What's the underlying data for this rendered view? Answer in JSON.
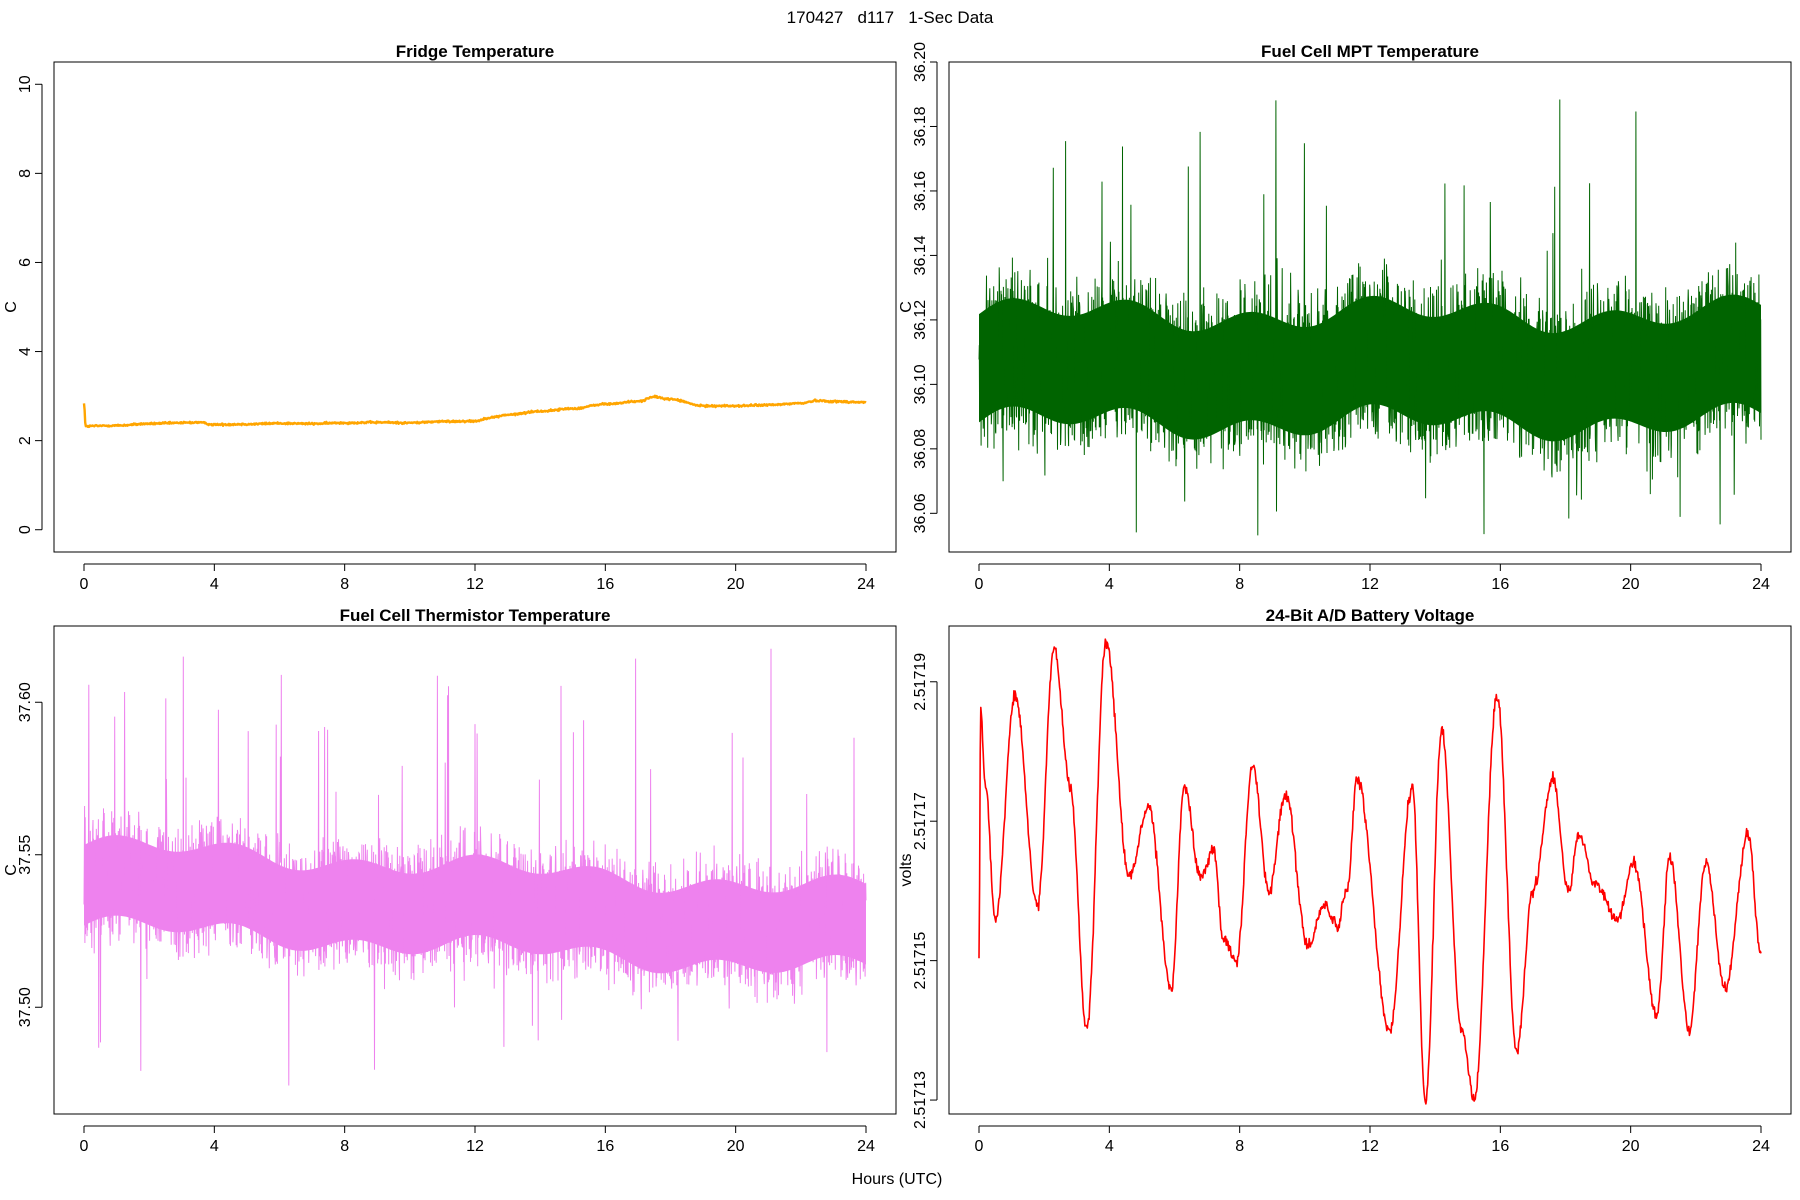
{
  "page_title": "170427   d117   1-Sec Data",
  "xlabel": "Hours (UTC)",
  "chart_data": [
    {
      "type": "line",
      "title": "Fridge Temperature",
      "ylabel": "C",
      "color": "#ffa500",
      "xlim": [
        0,
        24
      ],
      "ylim": [
        -0.5,
        10.5
      ],
      "xticks": [
        0,
        4,
        8,
        12,
        16,
        20,
        24
      ],
      "xtick_labels": [
        "0",
        "4",
        "8",
        "12",
        "16",
        "20",
        "24"
      ],
      "yticks": [
        0,
        2,
        4,
        6,
        8,
        10
      ],
      "ytick_labels": [
        "0",
        "2",
        "4",
        "6",
        "8",
        "10"
      ],
      "noise": 0.015,
      "x": [
        0,
        0.05,
        0.3,
        1,
        2,
        2.5,
        3,
        3.5,
        4,
        5,
        6,
        7,
        8,
        9,
        10,
        11,
        12,
        12.5,
        13,
        14,
        15,
        16,
        17,
        17.5,
        18,
        19,
        20,
        21,
        22,
        22.5,
        23,
        24
      ],
      "y": [
        2.85,
        2.32,
        2.33,
        2.34,
        2.38,
        2.39,
        2.4,
        2.41,
        2.36,
        2.37,
        2.39,
        2.38,
        2.4,
        2.41,
        2.4,
        2.43,
        2.44,
        2.52,
        2.58,
        2.66,
        2.72,
        2.82,
        2.88,
        2.98,
        2.93,
        2.78,
        2.78,
        2.8,
        2.84,
        2.9,
        2.88,
        2.86
      ]
    },
    {
      "type": "line",
      "title": "Fuel Cell MPT Temperature",
      "ylabel": "C",
      "color": "#006400",
      "xlim": [
        0,
        24
      ],
      "ylim": [
        36.048,
        36.2
      ],
      "xticks": [
        0,
        4,
        8,
        12,
        16,
        20,
        24
      ],
      "xtick_labels": [
        "0",
        "4",
        "8",
        "12",
        "16",
        "20",
        "24"
      ],
      "yticks": [
        36.06,
        36.08,
        36.1,
        36.12,
        36.14,
        36.16,
        36.18,
        36.2
      ],
      "ytick_labels": [
        "36.06",
        "36.08",
        "36.10",
        "36.12",
        "36.14",
        "36.16",
        "36.18",
        "36.20"
      ],
      "band": {
        "center": 36.105,
        "half_width": 0.028,
        "spike_max": 36.19,
        "spike_min": 36.052
      }
    },
    {
      "type": "line",
      "title": "Fuel Cell Thermistor Temperature",
      "ylabel": "C",
      "color": "#ee82ee",
      "xlim": [
        0,
        24
      ],
      "ylim": [
        37.465,
        37.625
      ],
      "xticks": [
        0,
        4,
        8,
        12,
        16,
        20,
        24
      ],
      "xtick_labels": [
        "0",
        "4",
        "8",
        "12",
        "16",
        "20",
        "24"
      ],
      "yticks": [
        37.5,
        37.55,
        37.6
      ],
      "ytick_labels": [
        "37.50",
        "37.55",
        "37.60"
      ],
      "band": {
        "center_start": 37.54,
        "center_end": 37.525,
        "half_width": 0.022,
        "spike_max": 37.618,
        "spike_min": 37.474
      }
    },
    {
      "type": "line",
      "title": "24-Bit A/D Battery Voltage",
      "ylabel": "volts",
      "color": "#ff0000",
      "xlim": [
        0,
        24
      ],
      "ylim": [
        2.517128,
        2.517198
      ],
      "xticks": [
        0,
        4,
        8,
        12,
        16,
        20,
        24
      ],
      "xtick_labels": [
        "0",
        "4",
        "8",
        "12",
        "16",
        "20",
        "24"
      ],
      "yticks": [
        2.51713,
        2.51715,
        2.51717,
        2.51719
      ],
      "ytick_labels": [
        "2.51713",
        "2.51715",
        "2.51717",
        "2.51719"
      ],
      "noise": 6e-07,
      "x": [
        0,
        0.05,
        0.2,
        0.5,
        1.1,
        1.8,
        2.3,
        2.8,
        3.3,
        3.9,
        4.6,
        5.2,
        5.9,
        6.3,
        6.8,
        7.2,
        7.5,
        7.9,
        8.4,
        8.9,
        9.4,
        10.1,
        10.6,
        11.0,
        11.3,
        11.6,
        12.6,
        13.3,
        13.7,
        14.2,
        14.8,
        15.2,
        15.9,
        16.5,
        17.0,
        17.6,
        18.1,
        18.4,
        18.9,
        19.6,
        20.1,
        20.8,
        21.2,
        21.8,
        22.3,
        22.9,
        23.6,
        24.0
      ],
      "y": [
        2.51715,
        2.517186,
        2.517175,
        2.517156,
        2.517188,
        2.517158,
        2.517195,
        2.517175,
        2.51714,
        2.517196,
        2.517162,
        2.517172,
        2.517146,
        2.517175,
        2.517162,
        2.517166,
        2.517153,
        2.51715,
        2.517178,
        2.51716,
        2.517174,
        2.517152,
        2.517158,
        2.517155,
        2.51716,
        2.517176,
        2.51714,
        2.517175,
        2.51713,
        2.517183,
        2.51714,
        2.51713,
        2.517188,
        2.517137,
        2.51716,
        2.517176,
        2.51716,
        2.517168,
        2.517161,
        2.517156,
        2.517164,
        2.517142,
        2.517165,
        2.51714,
        2.517164,
        2.517146,
        2.517168,
        2.517151
      ]
    }
  ]
}
